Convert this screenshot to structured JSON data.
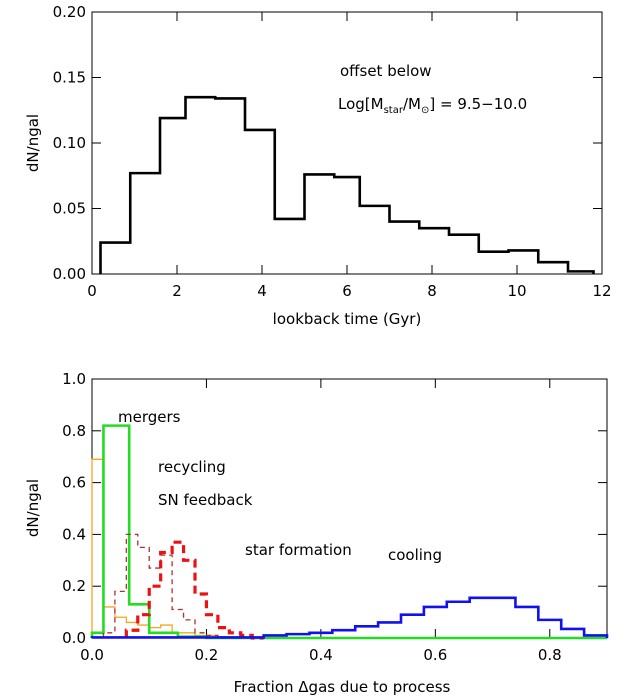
{
  "chart_data": [
    {
      "type": "histogram",
      "title": "",
      "xlabel": "lookback time (Gyr)",
      "ylabel": "dN/ngal",
      "xlim": [
        0,
        12
      ],
      "ylim": [
        0,
        0.2
      ],
      "xticks": [
        0,
        2,
        4,
        6,
        8,
        10,
        12
      ],
      "yticks": [
        0.0,
        0.05,
        0.1,
        0.15,
        0.2
      ],
      "xtick_labels": [
        "0",
        "2",
        "4",
        "6",
        "8",
        "10",
        "12"
      ],
      "ytick_labels": [
        "0.00",
        "0.05",
        "0.10",
        "0.15",
        "0.20"
      ],
      "annotations": [
        {
          "text": "offset below"
        },
        {
          "text": "Log[M",
          "sub": "star",
          "mid": "/M",
          "sun": "⊙",
          "tail": "] = 9.5−10.0"
        }
      ],
      "series": [
        {
          "color": "#000000",
          "style": "solid-thick",
          "bin_edges": [
            0.2,
            0.9,
            1.6,
            2.2,
            2.9,
            3.6,
            4.3,
            5.0,
            5.7,
            6.3,
            7.0,
            7.7,
            8.4,
            9.1,
            9.8,
            10.5,
            11.2,
            11.8
          ],
          "values": [
            0.024,
            0.077,
            0.119,
            0.135,
            0.134,
            0.11,
            0.042,
            0.076,
            0.074,
            0.052,
            0.04,
            0.035,
            0.03,
            0.017,
            0.018,
            0.009,
            0.002
          ]
        }
      ]
    },
    {
      "type": "histogram",
      "title": "",
      "xlabel": "Fraction Δgas due to process",
      "ylabel": "dN/ngal",
      "xlim": [
        0,
        0.9
      ],
      "ylim": [
        0,
        1.0
      ],
      "xticks": [
        0.0,
        0.2,
        0.4,
        0.6,
        0.8
      ],
      "yticks": [
        0.0,
        0.2,
        0.4,
        0.6,
        0.8,
        1.0
      ],
      "xtick_labels": [
        "0.0",
        "0.2",
        "0.4",
        "0.6",
        "0.8"
      ],
      "ytick_labels": [
        "0.0",
        "0.2",
        "0.4",
        "0.6",
        "0.8",
        "1.0"
      ],
      "series": [
        {
          "name": "mergers",
          "color": "#f5a623",
          "style": "solid-thin",
          "bin_edges": [
            0.0,
            0.02,
            0.04,
            0.06,
            0.08,
            0.1,
            0.12,
            0.14,
            0.16,
            0.18,
            0.2,
            0.22,
            0.24,
            0.26
          ],
          "values": [
            0.69,
            0.12,
            0.08,
            0.06,
            0.05,
            0.04,
            0.05,
            0.02,
            0.02,
            0.01,
            0.01,
            0.005,
            0.0
          ]
        },
        {
          "name": "recycling",
          "color": "#22dd22",
          "style": "solid-thick",
          "bin_edges": [
            0.0,
            0.02,
            0.065,
            0.1,
            0.15,
            0.2,
            0.9
          ],
          "values": [
            0.02,
            0.82,
            0.13,
            0.02,
            0.005,
            0.0
          ]
        },
        {
          "name": "SN feedback",
          "color": "#b03030",
          "style": "dashed-thin",
          "bin_edges": [
            0.02,
            0.04,
            0.06,
            0.08,
            0.1,
            0.12,
            0.14,
            0.16,
            0.18,
            0.2,
            0.22,
            0.24
          ],
          "values": [
            0.02,
            0.18,
            0.4,
            0.35,
            0.27,
            0.32,
            0.11,
            0.07,
            0.02,
            0.01,
            0.0
          ]
        },
        {
          "name": "star formation",
          "color": "#ee1111",
          "style": "dashed-thick",
          "bin_edges": [
            0.06,
            0.08,
            0.1,
            0.12,
            0.14,
            0.16,
            0.18,
            0.2,
            0.22,
            0.24,
            0.26,
            0.28,
            0.3
          ],
          "values": [
            0.03,
            0.09,
            0.2,
            0.33,
            0.37,
            0.3,
            0.17,
            0.09,
            0.04,
            0.02,
            0.01,
            0.0
          ]
        },
        {
          "name": "cooling",
          "color": "#1111ee",
          "style": "solid-thick",
          "bin_edges": [
            0.0,
            0.3,
            0.34,
            0.38,
            0.42,
            0.46,
            0.5,
            0.54,
            0.58,
            0.62,
            0.66,
            0.7,
            0.74,
            0.78,
            0.82,
            0.86,
            0.9
          ],
          "values": [
            0.002,
            0.01,
            0.015,
            0.02,
            0.03,
            0.045,
            0.06,
            0.09,
            0.12,
            0.14,
            0.155,
            0.155,
            0.12,
            0.07,
            0.035,
            0.01
          ]
        }
      ]
    }
  ]
}
